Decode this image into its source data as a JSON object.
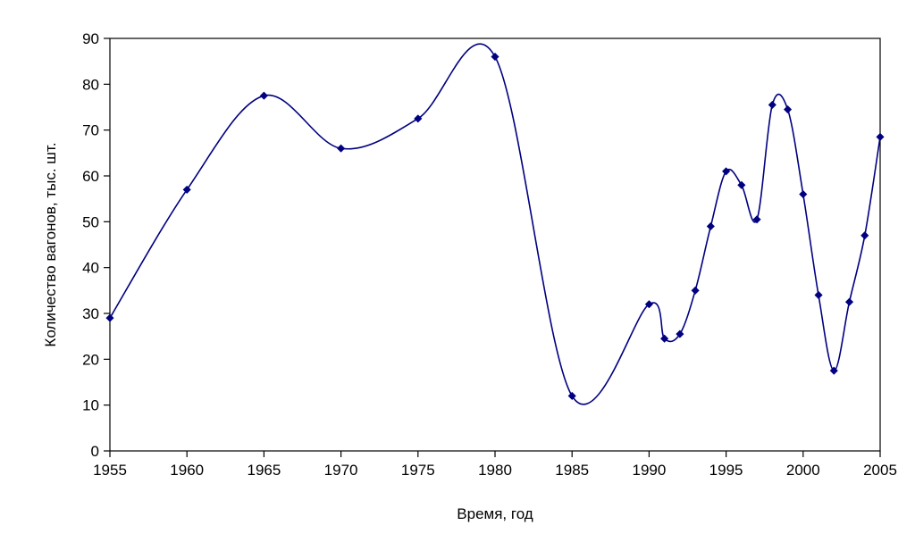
{
  "chart_data": {
    "type": "line",
    "title": "",
    "xlabel": "Время, год",
    "ylabel": "Количество вагонов, тыс. шт.",
    "xlim": [
      1955,
      2005
    ],
    "ylim": [
      0,
      90
    ],
    "x_ticks": [
      1955,
      1960,
      1965,
      1970,
      1975,
      1980,
      1985,
      1990,
      1995,
      2000,
      2005
    ],
    "y_ticks": [
      0,
      10,
      20,
      30,
      40,
      50,
      60,
      70,
      80,
      90
    ],
    "grid": false,
    "legend": false,
    "smooth": true,
    "line_color": "#000080",
    "marker": "diamond",
    "series": [
      {
        "name": "Количество вагонов",
        "x": [
          1955,
          1960,
          1965,
          1970,
          1975,
          1980,
          1985,
          1990,
          1991,
          1992,
          1993,
          1994,
          1995,
          1996,
          1997,
          1998,
          1999,
          2000,
          2001,
          2002,
          2003,
          2004,
          2005
        ],
        "y": [
          29,
          57,
          77.5,
          66,
          72.5,
          86,
          12,
          32,
          24.5,
          25.5,
          35,
          49,
          61,
          58,
          50.5,
          75.5,
          74.5,
          56,
          34,
          17.5,
          32.5,
          47,
          68.5
        ]
      }
    ]
  }
}
